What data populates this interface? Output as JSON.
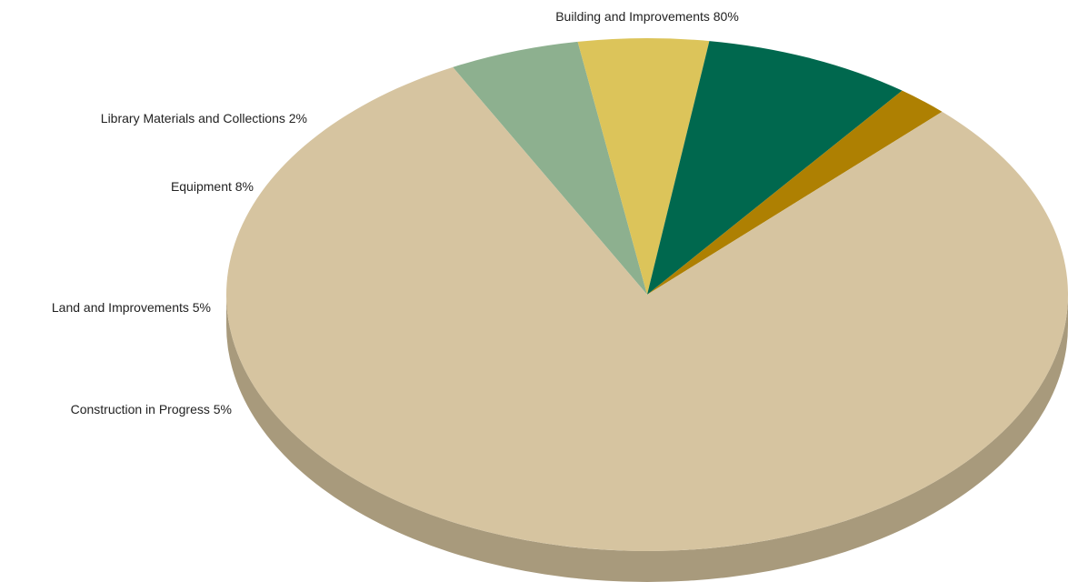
{
  "chart_data": {
    "type": "pie",
    "style": "3d",
    "title": "",
    "slices": [
      {
        "label": "Building and Improvements 80%",
        "value": 80,
        "color": "#D6C4A0",
        "side_color": "#A89A7C"
      },
      {
        "label": "Construction in Progress 5%",
        "value": 5,
        "color": "#8DB08F",
        "side_color": "#5E7C61"
      },
      {
        "label": "Land and Improvements 5%",
        "value": 5,
        "color": "#DCC45A",
        "side_color": "#9A883D"
      },
      {
        "label": "Equipment 8%",
        "value": 8,
        "color": "#00684E",
        "side_color": "#004836"
      },
      {
        "label": "Library Materials and Collections 2%",
        "value": 2,
        "color": "#AE8002",
        "side_color": "#7A5A02"
      }
    ]
  }
}
